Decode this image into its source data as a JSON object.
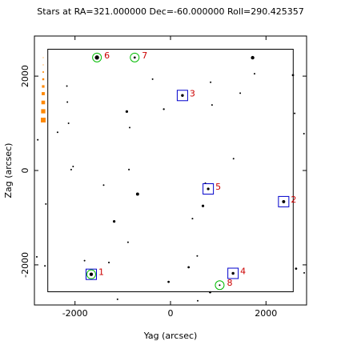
{
  "chart_data": {
    "type": "scatter",
    "title": "Stars at RA=321.000000 Dec=-60.000000 Roll=290.425357",
    "xlabel": "Yag (arcsec)",
    "ylabel": "Zag (arcsec)",
    "xlim": [
      -2850,
      2850
    ],
    "ylim": [
      -2850,
      2850
    ],
    "x_ticks": [
      {
        "value": -2000,
        "label": "-2000"
      },
      {
        "value": 0,
        "label": "0"
      },
      {
        "value": 2000,
        "label": "2000"
      }
    ],
    "y_ticks": [
      {
        "value": -2000,
        "label": "-2000"
      },
      {
        "value": 0,
        "label": "0"
      },
      {
        "value": 2000,
        "label": "2000"
      }
    ],
    "fov_box": {
      "xmin": -2570,
      "xmax": 2570,
      "ymin": -2570,
      "ymax": 2570
    },
    "field_stars": [
      {
        "x": -2170,
        "y": 1790,
        "mag": 9.8
      },
      {
        "x": -1540,
        "y": 2395,
        "mag": 8.2
      },
      {
        "x": -750,
        "y": 2395,
        "mag": 9.3
      },
      {
        "x": -375,
        "y": 1935,
        "mag": 9.8
      },
      {
        "x": 1720,
        "y": 2390,
        "mag": 8.6
      },
      {
        "x": 1760,
        "y": 2050,
        "mag": 9.8
      },
      {
        "x": 2565,
        "y": 2020,
        "mag": 9.3
      },
      {
        "x": 2600,
        "y": 1210,
        "mag": 9.8
      },
      {
        "x": 2795,
        "y": 780,
        "mag": 9.6
      },
      {
        "x": 250,
        "y": 1590,
        "mag": 9.0
      },
      {
        "x": 840,
        "y": 1870,
        "mag": 9.9
      },
      {
        "x": 1460,
        "y": 1640,
        "mag": 9.7
      },
      {
        "x": 870,
        "y": 1390,
        "mag": 9.9
      },
      {
        "x": -915,
        "y": 1250,
        "mag": 9.1
      },
      {
        "x": -140,
        "y": 1300,
        "mag": 9.5
      },
      {
        "x": -2160,
        "y": 1450,
        "mag": 9.8
      },
      {
        "x": -2135,
        "y": 1000,
        "mag": 9.8
      },
      {
        "x": -2365,
        "y": 810,
        "mag": 9.6
      },
      {
        "x": -2780,
        "y": 650,
        "mag": 9.6
      },
      {
        "x": -855,
        "y": 910,
        "mag": 9.9
      },
      {
        "x": -2040,
        "y": 85,
        "mag": 9.7
      },
      {
        "x": -2080,
        "y": 20,
        "mag": 9.8
      },
      {
        "x": -870,
        "y": 20,
        "mag": 9.6
      },
      {
        "x": 1320,
        "y": 250,
        "mag": 9.7
      },
      {
        "x": 730,
        "y": -270,
        "mag": 9.8
      },
      {
        "x": -1400,
        "y": -310,
        "mag": 9.8
      },
      {
        "x": -690,
        "y": -500,
        "mag": 8.8
      },
      {
        "x": 790,
        "y": -390,
        "mag": 9.1
      },
      {
        "x": 680,
        "y": -750,
        "mag": 9.1
      },
      {
        "x": 460,
        "y": -1020,
        "mag": 9.6
      },
      {
        "x": -1180,
        "y": -1080,
        "mag": 9.1
      },
      {
        "x": -2610,
        "y": -710,
        "mag": 9.8
      },
      {
        "x": 2370,
        "y": -660,
        "mag": 8.8
      },
      {
        "x": -890,
        "y": -1520,
        "mag": 9.8
      },
      {
        "x": -1800,
        "y": -1910,
        "mag": 9.8
      },
      {
        "x": -1290,
        "y": -1950,
        "mag": 9.6
      },
      {
        "x": -2800,
        "y": -1830,
        "mag": 9.6
      },
      {
        "x": -2630,
        "y": -2020,
        "mag": 9.8
      },
      {
        "x": -1660,
        "y": -2200,
        "mag": 8.6
      },
      {
        "x": 380,
        "y": -2050,
        "mag": 9.3
      },
      {
        "x": 560,
        "y": -1810,
        "mag": 9.9
      },
      {
        "x": 1310,
        "y": -2180,
        "mag": 9.0
      },
      {
        "x": -40,
        "y": -2360,
        "mag": 9.3
      },
      {
        "x": 830,
        "y": -2580,
        "mag": 9.3
      },
      {
        "x": 1030,
        "y": -2430,
        "mag": 9.6
      },
      {
        "x": 2630,
        "y": -2080,
        "mag": 9.3
      },
      {
        "x": 2800,
        "y": -2170,
        "mag": 9.8
      },
      {
        "x": -1110,
        "y": -2730,
        "mag": 9.7
      },
      {
        "x": 570,
        "y": -2760,
        "mag": 9.8
      }
    ],
    "guide_stars": [
      {
        "id": "1",
        "x": -1660,
        "y": -2200
      },
      {
        "id": "2",
        "x": 2370,
        "y": -660
      },
      {
        "id": "3",
        "x": 250,
        "y": 1590
      },
      {
        "id": "4",
        "x": 1310,
        "y": -2180
      },
      {
        "id": "5",
        "x": 790,
        "y": -390
      }
    ],
    "acq_stars": [
      {
        "id": "1",
        "x": -1660,
        "y": -2200
      },
      {
        "id": "6",
        "x": -1540,
        "y": 2395
      },
      {
        "id": "7",
        "x": -750,
        "y": 2395
      },
      {
        "id": "8",
        "x": 1030,
        "y": -2430
      }
    ],
    "legend_mags": [
      6,
      7,
      8,
      9,
      10,
      11,
      12,
      13,
      14
    ],
    "colors": {
      "axes": "#000000",
      "star": "#000000",
      "guide_box": "#0000cc",
      "acq_circle": "#00bb00",
      "id_label": "#cc0000",
      "legend_marker": "#ff8800"
    }
  }
}
